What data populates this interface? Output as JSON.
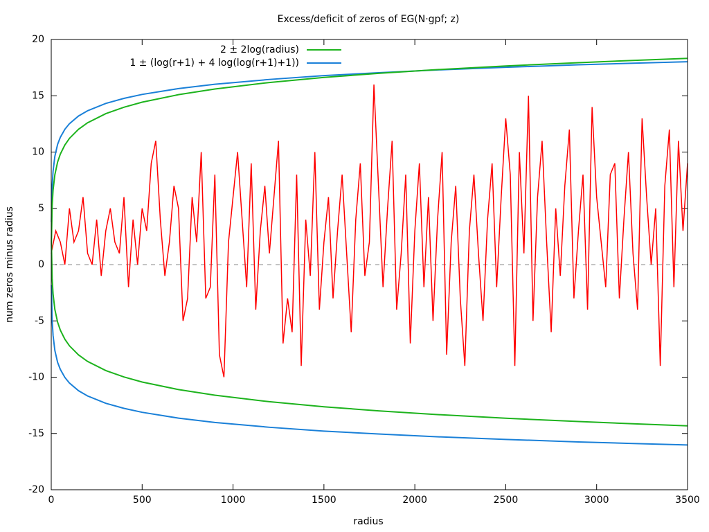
{
  "chart_data": {
    "type": "line",
    "title": "Excess/deficit of zeros of EG(N·gpf; z)",
    "xlabel": "radius",
    "ylabel": "num zeros minus radius",
    "xlim": [
      0,
      3500
    ],
    "ylim": [
      -20,
      20
    ],
    "xticks": [
      0,
      500,
      1000,
      1500,
      2000,
      2500,
      3000,
      3500
    ],
    "yticks": [
      -20,
      -15,
      -10,
      -5,
      0,
      5,
      10,
      15,
      20
    ],
    "reference_line": {
      "value": 0,
      "color": "#a0a0a0"
    },
    "legend": "top",
    "series": [
      {
        "name": "2 ± 2log(radius)",
        "color": "#1db31d",
        "x": [
          1,
          5,
          10,
          20,
          35,
          50,
          75,
          100,
          150,
          200,
          300,
          400,
          500,
          700,
          900,
          1200,
          1500,
          1800,
          2100,
          2500,
          2900,
          3200,
          3500
        ],
        "upper": [
          2,
          5.22,
          6.61,
          7.99,
          9.11,
          9.82,
          10.63,
          11.21,
          12.02,
          12.6,
          13.41,
          13.98,
          14.43,
          15.1,
          15.6,
          16.18,
          16.63,
          16.99,
          17.3,
          17.65,
          17.94,
          18.14,
          18.32
        ],
        "lower": [
          2,
          -1.22,
          -2.61,
          -3.99,
          -5.11,
          -5.82,
          -6.63,
          -7.21,
          -8.02,
          -8.6,
          -9.41,
          -9.98,
          -10.43,
          -11.1,
          -11.6,
          -12.18,
          -12.63,
          -12.99,
          -13.3,
          -13.65,
          -13.94,
          -14.14,
          -14.32
        ]
      },
      {
        "name": "1 ± (log(r+1) + 4 log(log(r+1)+1))",
        "color": "#1a80d8",
        "x": [
          1,
          5,
          10,
          20,
          35,
          50,
          75,
          100,
          150,
          200,
          300,
          400,
          500,
          700,
          900,
          1200,
          1500,
          1800,
          2100,
          2500,
          2900,
          3200,
          3500
        ],
        "upper": [
          3.8,
          6.9,
          8.29,
          9.63,
          10.68,
          11.31,
          12.02,
          12.52,
          13.2,
          13.67,
          14.32,
          14.77,
          15.12,
          15.64,
          16.02,
          16.45,
          16.79,
          17.05,
          17.28,
          17.53,
          17.75,
          17.89,
          18.02
        ],
        "lower": [
          -1.8,
          -4.9,
          -6.29,
          -7.63,
          -8.68,
          -9.31,
          -10.02,
          -10.52,
          -11.2,
          -11.67,
          -12.32,
          -12.77,
          -13.12,
          -13.64,
          -14.02,
          -14.45,
          -14.79,
          -15.05,
          -15.28,
          -15.53,
          -15.75,
          -15.89,
          -16.02
        ]
      },
      {
        "color": "#ff0000",
        "x": [
          0,
          25,
          50,
          75,
          100,
          125,
          150,
          175,
          200,
          225,
          250,
          275,
          300,
          325,
          350,
          375,
          400,
          425,
          450,
          475,
          500,
          525,
          550,
          575,
          600,
          625,
          650,
          675,
          700,
          725,
          750,
          775,
          800,
          825,
          850,
          875,
          900,
          925,
          950,
          975,
          1000,
          1025,
          1050,
          1075,
          1100,
          1125,
          1150,
          1175,
          1200,
          1225,
          1250,
          1275,
          1300,
          1325,
          1350,
          1375,
          1400,
          1425,
          1450,
          1475,
          1500,
          1525,
          1550,
          1575,
          1600,
          1625,
          1650,
          1675,
          1700,
          1725,
          1750,
          1775,
          1800,
          1825,
          1850,
          1875,
          1900,
          1925,
          1950,
          1975,
          2000,
          2025,
          2050,
          2075,
          2100,
          2125,
          2150,
          2175,
          2200,
          2225,
          2250,
          2275,
          2300,
          2325,
          2350,
          2375,
          2400,
          2425,
          2450,
          2475,
          2500,
          2525,
          2550,
          2575,
          2600,
          2625,
          2650,
          2675,
          2700,
          2725,
          2750,
          2775,
          2800,
          2825,
          2850,
          2875,
          2900,
          2925,
          2950,
          2975,
          3000,
          3025,
          3050,
          3075,
          3100,
          3125,
          3150,
          3175,
          3200,
          3225,
          3250,
          3275,
          3300,
          3325,
          3350,
          3375,
          3400,
          3425,
          3450,
          3475,
          3500
        ],
        "values": [
          1,
          3,
          2,
          0,
          5,
          2,
          3,
          6,
          1,
          0,
          4,
          -1,
          3,
          5,
          2,
          1,
          6,
          -2,
          4,
          0,
          5,
          3,
          9,
          11,
          4,
          -1,
          2,
          7,
          5,
          -5,
          -3,
          6,
          2,
          10,
          -3,
          -2,
          8,
          -8,
          -10,
          2,
          6,
          10,
          4,
          -2,
          9,
          -4,
          3,
          7,
          1,
          6,
          11,
          -7,
          -3,
          -6,
          8,
          -9,
          4,
          -1,
          10,
          -4,
          2,
          6,
          -3,
          3,
          8,
          1,
          -6,
          4,
          9,
          -1,
          2,
          16,
          7,
          -2,
          5,
          11,
          -4,
          1,
          8,
          -7,
          3,
          9,
          -2,
          6,
          -5,
          4,
          10,
          -8,
          2,
          7,
          -3,
          -9,
          3,
          8,
          1,
          -5,
          4,
          9,
          -2,
          6,
          13,
          8,
          -9,
          10,
          1,
          15,
          -5,
          6,
          11,
          2,
          -6,
          5,
          -1,
          7,
          12,
          -3,
          3,
          8,
          -4,
          14,
          6,
          2,
          -2,
          8,
          9,
          -3,
          4,
          10,
          1,
          -4,
          13,
          6,
          0,
          5,
          -9,
          7,
          12,
          -2,
          11,
          3,
          9
        ]
      }
    ]
  }
}
